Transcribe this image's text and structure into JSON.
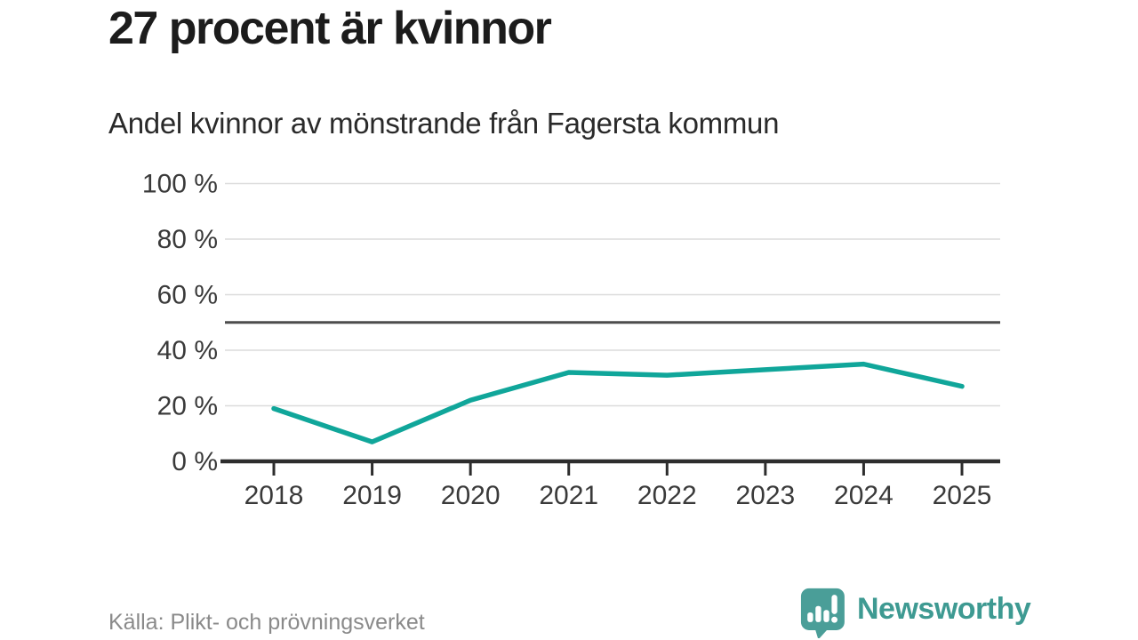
{
  "header": {
    "title": "27 procent är kvinnor",
    "subtitle": "Andel kvinnor av mönstrande från Fagersta kommun"
  },
  "chart_data": {
    "type": "line",
    "title": "27 procent är kvinnor",
    "subtitle": "Andel kvinnor av mönstrande från Fagersta kommun",
    "x": [
      "2018",
      "2019",
      "2020",
      "2021",
      "2022",
      "2023",
      "2024",
      "2025"
    ],
    "series": [
      {
        "name": "Andel kvinnor av mönstrande",
        "values": [
          19,
          7,
          22,
          32,
          31,
          33,
          35,
          27
        ]
      }
    ],
    "ylim": [
      0,
      100
    ],
    "yticks": [
      0,
      20,
      40,
      60,
      80,
      100
    ],
    "ytick_suffix": " %",
    "reference_line": 50,
    "grid": true,
    "legend_position": "none",
    "xlabel": "",
    "ylabel": ""
  },
  "footer": {
    "source": "Källa: Plikt- och prövningsverket",
    "brand": "Newsworthy"
  },
  "icons": {
    "brand_logo": "speech-bubble-bar-chart-exclamation"
  },
  "colors": {
    "line": "#10a69a",
    "grid": "#dcdcdc",
    "reference_line": "#4d4d4d",
    "axis": "#2d2d2d",
    "tick_label": "#3a3a3a",
    "title_text": "#1c1c1c",
    "muted_text": "#8a8a8a",
    "brand": "#3e9a92",
    "brand_icon": "#4a9e98",
    "background": "#ffffff"
  }
}
